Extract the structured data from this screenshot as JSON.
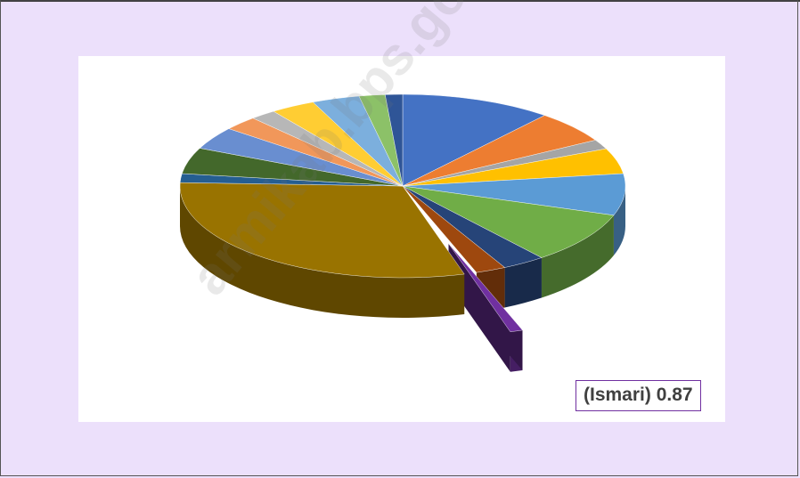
{
  "chart_data": {
    "type": "pie",
    "style": "3d-exploded",
    "slices": [
      {
        "value": 10.5,
        "color": "#4472c4"
      },
      {
        "value": 5.4,
        "color": "#ed7d31"
      },
      {
        "value": 1.6,
        "color": "#a5a5a5"
      },
      {
        "value": 4.3,
        "color": "#ffc000"
      },
      {
        "value": 7.0,
        "color": "#5b9bd5"
      },
      {
        "value": 8.7,
        "color": "#70ad47"
      },
      {
        "value": 3.0,
        "color": "#264478"
      },
      {
        "value": 2.1,
        "color": "#9e480e"
      },
      {
        "value": 0.87,
        "color": "#7030a0",
        "label": "(Ismari) 0.87",
        "exploded": true
      },
      {
        "value": 28.7,
        "color": "#997300"
      },
      {
        "value": 1.5,
        "color": "#255e91"
      },
      {
        "value": 4.4,
        "color": "#43682b"
      },
      {
        "value": 3.8,
        "color": "#698ed0"
      },
      {
        "value": 2.4,
        "color": "#f1975a"
      },
      {
        "value": 1.8,
        "color": "#b7b7b7"
      },
      {
        "value": 3.1,
        "color": "#ffcd33"
      },
      {
        "value": 3.3,
        "color": "#7cafdd"
      },
      {
        "value": 1.8,
        "color": "#8cc168"
      },
      {
        "value": 1.2,
        "color": "#2f5597"
      }
    ],
    "data_label": "(Ismari) 0.87"
  },
  "watermark": "armikab.bps.go.id"
}
